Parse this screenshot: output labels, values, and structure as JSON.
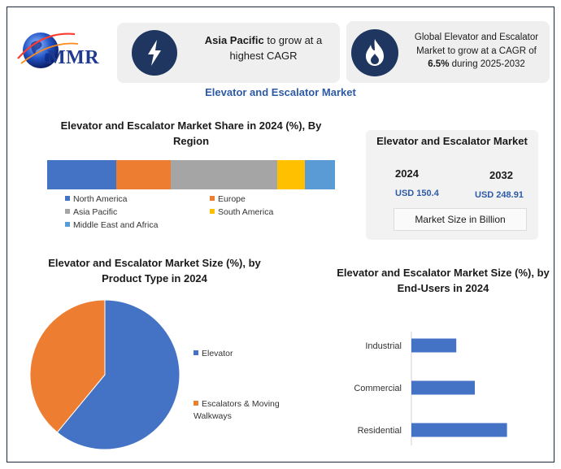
{
  "logo": {
    "text": "MMR"
  },
  "highlights": {
    "left": {
      "bold": "Asia Pacific",
      "rest": " to grow at a highest CAGR",
      "icon": "lightning-icon"
    },
    "right": {
      "pre": "Global Elevator and Escalator Market to grow at a CAGR of ",
      "bold": "6.5%",
      "post": " during 2025-2032",
      "icon": "flame-icon"
    }
  },
  "main_title": "Elevator and Escalator Market",
  "market_size": {
    "title": "Elevator and Escalator Market",
    "year_1": "2024",
    "value_1": "USD 150.4",
    "year_2": "2032",
    "value_2": "USD 248.91",
    "unit": "Market Size in Billion"
  },
  "colors": {
    "blue": "#4472c4",
    "orange": "#ed7d31",
    "gray": "#a5a5a5",
    "yellow": "#ffc000",
    "light_blue": "#5b9bd5",
    "accent": "#2d5aa6"
  },
  "chart_data": [
    {
      "type": "bar",
      "orientation": "horizontal-stacked",
      "title": "Elevator and Escalator Market Share in 2024 (%), By Region",
      "series": [
        {
          "name": "North America",
          "value": 24,
          "color": "#4472c4"
        },
        {
          "name": "Europe",
          "value": 19,
          "color": "#ed7d31"
        },
        {
          "name": "Asia Pacific",
          "value": 37,
          "color": "#a5a5a5"
        },
        {
          "name": "South America",
          "value": 9.5,
          "color": "#ffc000"
        },
        {
          "name": "Middle East and Africa",
          "value": 10.5,
          "color": "#5b9bd5"
        }
      ],
      "legend": "bottom"
    },
    {
      "type": "pie",
      "title": "Elevator and Escalator  Market Size (%), by Product Type in 2024",
      "slices": [
        {
          "name": "Elevator",
          "value": 61,
          "color": "#4472c4"
        },
        {
          "name": "Escalators & Moving Walkways",
          "value": 39,
          "color": "#ed7d31"
        }
      ],
      "legend": "right"
    },
    {
      "type": "bar",
      "orientation": "horizontal",
      "title": "Elevator and Escalator Market Size (%), by End-Users in 2024",
      "categories": [
        "Industrial",
        "Commercial",
        "Residential"
      ],
      "values": [
        23,
        32.5,
        49
      ],
      "xlim": [
        0,
        70
      ],
      "color": "#4472c4",
      "grid": false
    }
  ]
}
